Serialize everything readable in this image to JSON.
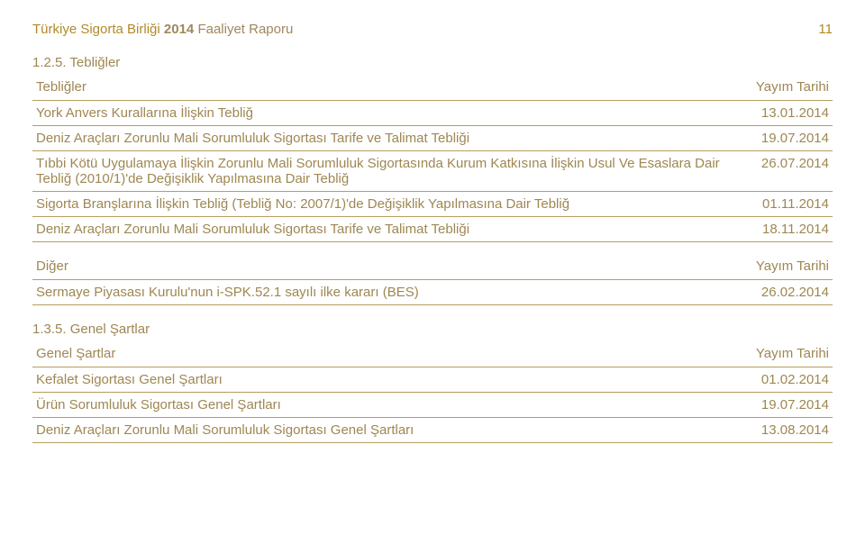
{
  "header": {
    "org": "Türkiye Sigorta Birliği",
    "year": "2014",
    "rest": "Faaliyet Raporu",
    "page": "11"
  },
  "section1": {
    "number": "1.2.5. Tebliğler",
    "headerLeft": "Tebliğler",
    "headerRight": "Yayım Tarihi",
    "rows": [
      {
        "l": "York Anvers Kurallarına İlişkin Tebliğ",
        "r": "13.01.2014"
      },
      {
        "l": "Deniz Araçları Zorunlu Mali Sorumluluk Sigortası Tarife ve Talimat Tebliği",
        "r": "19.07.2014"
      },
      {
        "l": "Tıbbi Kötü Uygulamaya İlişkin Zorunlu Mali Sorumluluk Sigortasında Kurum Katkısına İlişkin Usul Ve Esaslara Dair Tebliğ (2010/1)'de Değişiklik Yapılmasına Dair Tebliğ",
        "r": "26.07.2014"
      },
      {
        "l": "Sigorta Branşlarına İlişkin Tebliğ (Tebliğ No: 2007/1)'de Değişiklik Yapılmasına Dair Tebliğ",
        "r": "01.11.2014"
      },
      {
        "l": "Deniz Araçları Zorunlu Mali Sorumluluk Sigortası Tarife ve Talimat Tebliği",
        "r": "18.11.2014"
      }
    ]
  },
  "section2": {
    "headerLeft": "Diğer",
    "headerRight": "Yayım Tarihi",
    "rows": [
      {
        "l": "Sermaye Piyasası Kurulu'nun i-SPK.52.1 sayılı ilke kararı (BES)",
        "r": "26.02.2014"
      }
    ]
  },
  "section3": {
    "number": "1.3.5. Genel Şartlar",
    "headerLeft": "Genel Şartlar",
    "headerRight": "Yayım Tarihi",
    "rows": [
      {
        "l": "Kefalet Sigortası Genel Şartları",
        "r": "01.02.2014"
      },
      {
        "l": "Ürün Sorumluluk Sigortası Genel Şartları",
        "r": "19.07.2014"
      },
      {
        "l": "Deniz Araçları Zorunlu Mali Sorumluluk Sigortası Genel Şartları",
        "r": "13.08.2014"
      }
    ]
  }
}
